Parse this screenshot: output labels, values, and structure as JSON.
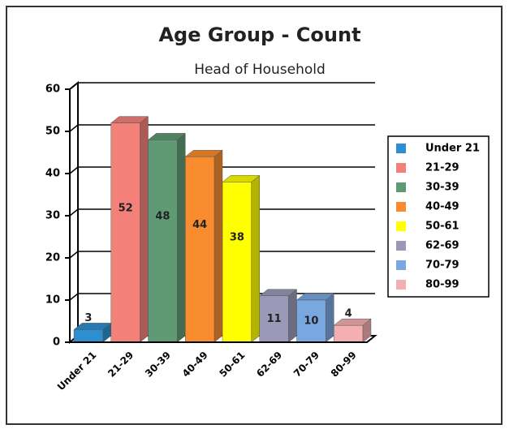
{
  "chart_data": {
    "type": "bar3d",
    "title": "Age Group - Count",
    "subtitle": "Head of Household",
    "categories": [
      "Under 21",
      "21-29",
      "30-39",
      "40-49",
      "50-61",
      "62-69",
      "70-79",
      "80-99"
    ],
    "values": [
      3,
      52,
      48,
      44,
      38,
      11,
      10,
      4
    ],
    "colors": [
      "#2e8fd0",
      "#f4807a",
      "#5f9a74",
      "#f98c2e",
      "#ffff00",
      "#9a9ab8",
      "#79a7e0",
      "#f4b0b0"
    ],
    "ylim": [
      0,
      60
    ],
    "yticks": [
      0,
      10,
      20,
      30,
      40,
      50,
      60
    ],
    "grid": true,
    "legend": "right"
  }
}
